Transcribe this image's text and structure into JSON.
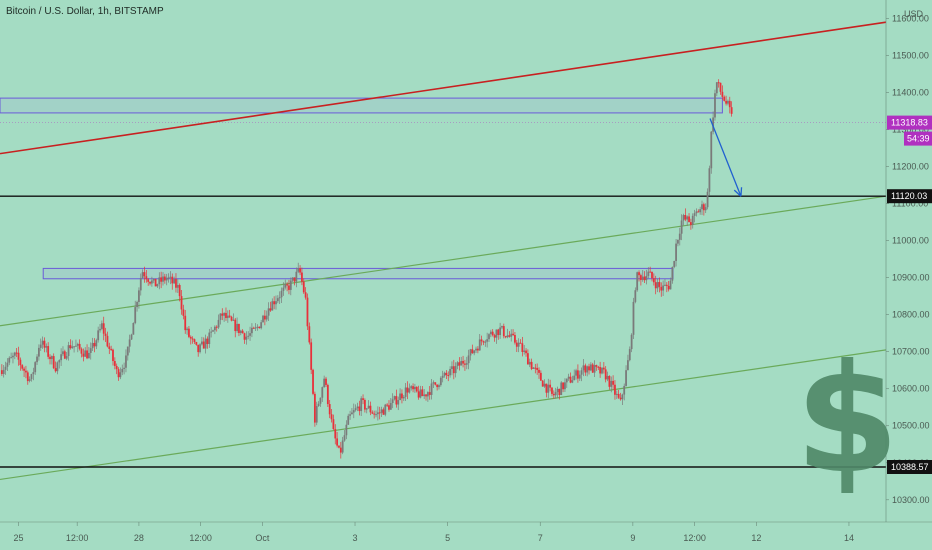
{
  "header": {
    "title": "Bitcoin / U.S. Dollar, 1h, BITSTAMP"
  },
  "watermark": {
    "glyph": "$",
    "color": "#4f8868"
  },
  "colors": {
    "background": "#a4dcc3",
    "up": "#7a7a7a",
    "down": "#e8303a",
    "channel": "#6aaa5a",
    "resistance": "#c82020",
    "zone": "#6a5ad8",
    "arrow": "#2060d0",
    "price_tag": "#b030c0"
  },
  "chart_data": {
    "type": "candlestick",
    "title": "Bitcoin / U.S. Dollar, 1h, BITSTAMP",
    "ylabel": "USD",
    "ylim": [
      10240,
      11650
    ],
    "y_ticks": [
      10300,
      10400,
      10500,
      10600,
      10700,
      10800,
      10900,
      11000,
      11100,
      11200,
      11300,
      11400,
      11500,
      11600
    ],
    "y_tick_labels": [
      "10300.00",
      "10400.00",
      "10500.00",
      "10600.00",
      "10700.00",
      "10800.00",
      "10900.00",
      "11000.00",
      "11100.00",
      "11200.00",
      "11300.00",
      "11400.00",
      "11500.00",
      "11600.00"
    ],
    "x_ticks": [
      {
        "label": "25",
        "x": 0.6
      },
      {
        "label": "12:00",
        "x": 2.5
      },
      {
        "label": "28",
        "x": 4.5
      },
      {
        "label": "12:00",
        "x": 6.5
      },
      {
        "label": "Oct",
        "x": 8.5
      },
      {
        "label": "3",
        "x": 11.5
      },
      {
        "label": "5",
        "x": 14.5
      },
      {
        "label": "7",
        "x": 17.5
      },
      {
        "label": "9",
        "x": 20.5
      },
      {
        "label": "12:00",
        "x": 22.5
      },
      {
        "label": "12",
        "x": 24.5
      },
      {
        "label": "14",
        "x": 27.5
      }
    ],
    "xlim": [
      0,
      28.7
    ],
    "price_path": [
      [
        0.0,
        10650
      ],
      [
        0.5,
        10690
      ],
      [
        1.0,
        10620
      ],
      [
        1.3,
        10730
      ],
      [
        1.8,
        10660
      ],
      [
        2.3,
        10720
      ],
      [
        2.9,
        10690
      ],
      [
        3.3,
        10770
      ],
      [
        3.8,
        10640
      ],
      [
        4.1,
        10680
      ],
      [
        4.3,
        10780
      ],
      [
        4.6,
        10920
      ],
      [
        5.0,
        10880
      ],
      [
        5.4,
        10900
      ],
      [
        5.8,
        10870
      ],
      [
        6.0,
        10760
      ],
      [
        6.4,
        10700
      ],
      [
        6.8,
        10740
      ],
      [
        7.2,
        10800
      ],
      [
        7.6,
        10770
      ],
      [
        8.0,
        10740
      ],
      [
        8.3,
        10760
      ],
      [
        8.7,
        10820
      ],
      [
        9.0,
        10850
      ],
      [
        9.4,
        10880
      ],
      [
        9.7,
        10920
      ],
      [
        9.9,
        10840
      ],
      [
        10.2,
        10520
      ],
      [
        10.5,
        10630
      ],
      [
        10.8,
        10480
      ],
      [
        11.0,
        10420
      ],
      [
        11.3,
        10520
      ],
      [
        11.7,
        10560
      ],
      [
        12.2,
        10530
      ],
      [
        12.7,
        10560
      ],
      [
        13.2,
        10600
      ],
      [
        13.7,
        10580
      ],
      [
        14.2,
        10620
      ],
      [
        14.7,
        10650
      ],
      [
        15.2,
        10690
      ],
      [
        15.7,
        10740
      ],
      [
        16.2,
        10760
      ],
      [
        16.8,
        10720
      ],
      [
        17.4,
        10640
      ],
      [
        17.9,
        10580
      ],
      [
        18.4,
        10620
      ],
      [
        19.0,
        10660
      ],
      [
        19.6,
        10640
      ],
      [
        20.1,
        10560
      ],
      [
        20.4,
        10700
      ],
      [
        20.6,
        10900
      ],
      [
        21.0,
        10910
      ],
      [
        21.4,
        10870
      ],
      [
        21.7,
        10880
      ],
      [
        21.9,
        10990
      ],
      [
        22.1,
        11060
      ],
      [
        22.4,
        11050
      ],
      [
        22.6,
        11080
      ],
      [
        22.9,
        11100
      ],
      [
        23.05,
        11300
      ],
      [
        23.2,
        11430
      ],
      [
        23.4,
        11390
      ],
      [
        23.6,
        11360
      ],
      [
        23.75,
        11318.83
      ]
    ],
    "annotations": {
      "resistance_line": [
        [
          0,
          11235
        ],
        [
          28.7,
          11590
        ]
      ],
      "channel_upper": [
        [
          0,
          10770
        ],
        [
          28.7,
          11120
        ]
      ],
      "channel_lower": [
        [
          0,
          10355
        ],
        [
          28.7,
          10705
        ]
      ],
      "support_line_upper": {
        "price": 11120.03,
        "label": "11120.03"
      },
      "support_line_lower": {
        "price": 10388.57,
        "label": "10388.57"
      },
      "zone_top": {
        "x0": 0,
        "x1": 23.4,
        "y_low": 11345,
        "y_high": 11385
      },
      "zone_mid": {
        "x0": 1.4,
        "x1": 21.8,
        "y_low": 10897,
        "y_high": 10925
      },
      "current_price": {
        "price": 11318.83,
        "label": "11318.83",
        "countdown": "54:39"
      },
      "arrow": {
        "from": [
          23.0,
          11330
        ],
        "to": [
          24.0,
          11120
        ]
      }
    }
  }
}
